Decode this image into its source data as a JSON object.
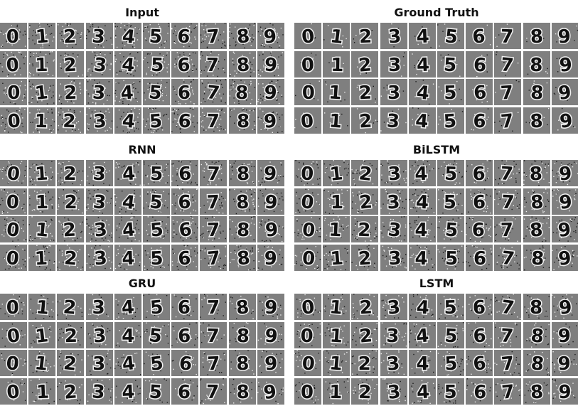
{
  "digits": [
    "0",
    "1",
    "2",
    "3",
    "4",
    "5",
    "6",
    "7",
    "8",
    "9"
  ],
  "panels": [
    {
      "id": "input",
      "title": "Input",
      "noise": 0.55
    },
    {
      "id": "ground-truth",
      "title": "Ground Truth",
      "noise": 0.1
    },
    {
      "id": "rnn",
      "title": "RNN",
      "noise": 0.5
    },
    {
      "id": "bilstm",
      "title": "BiLSTM",
      "noise": 0.45
    },
    {
      "id": "gru",
      "title": "GRU",
      "noise": 0.3
    },
    {
      "id": "lstm",
      "title": "LSTM",
      "noise": 0.35
    }
  ],
  "rows_per_panel": 4
}
